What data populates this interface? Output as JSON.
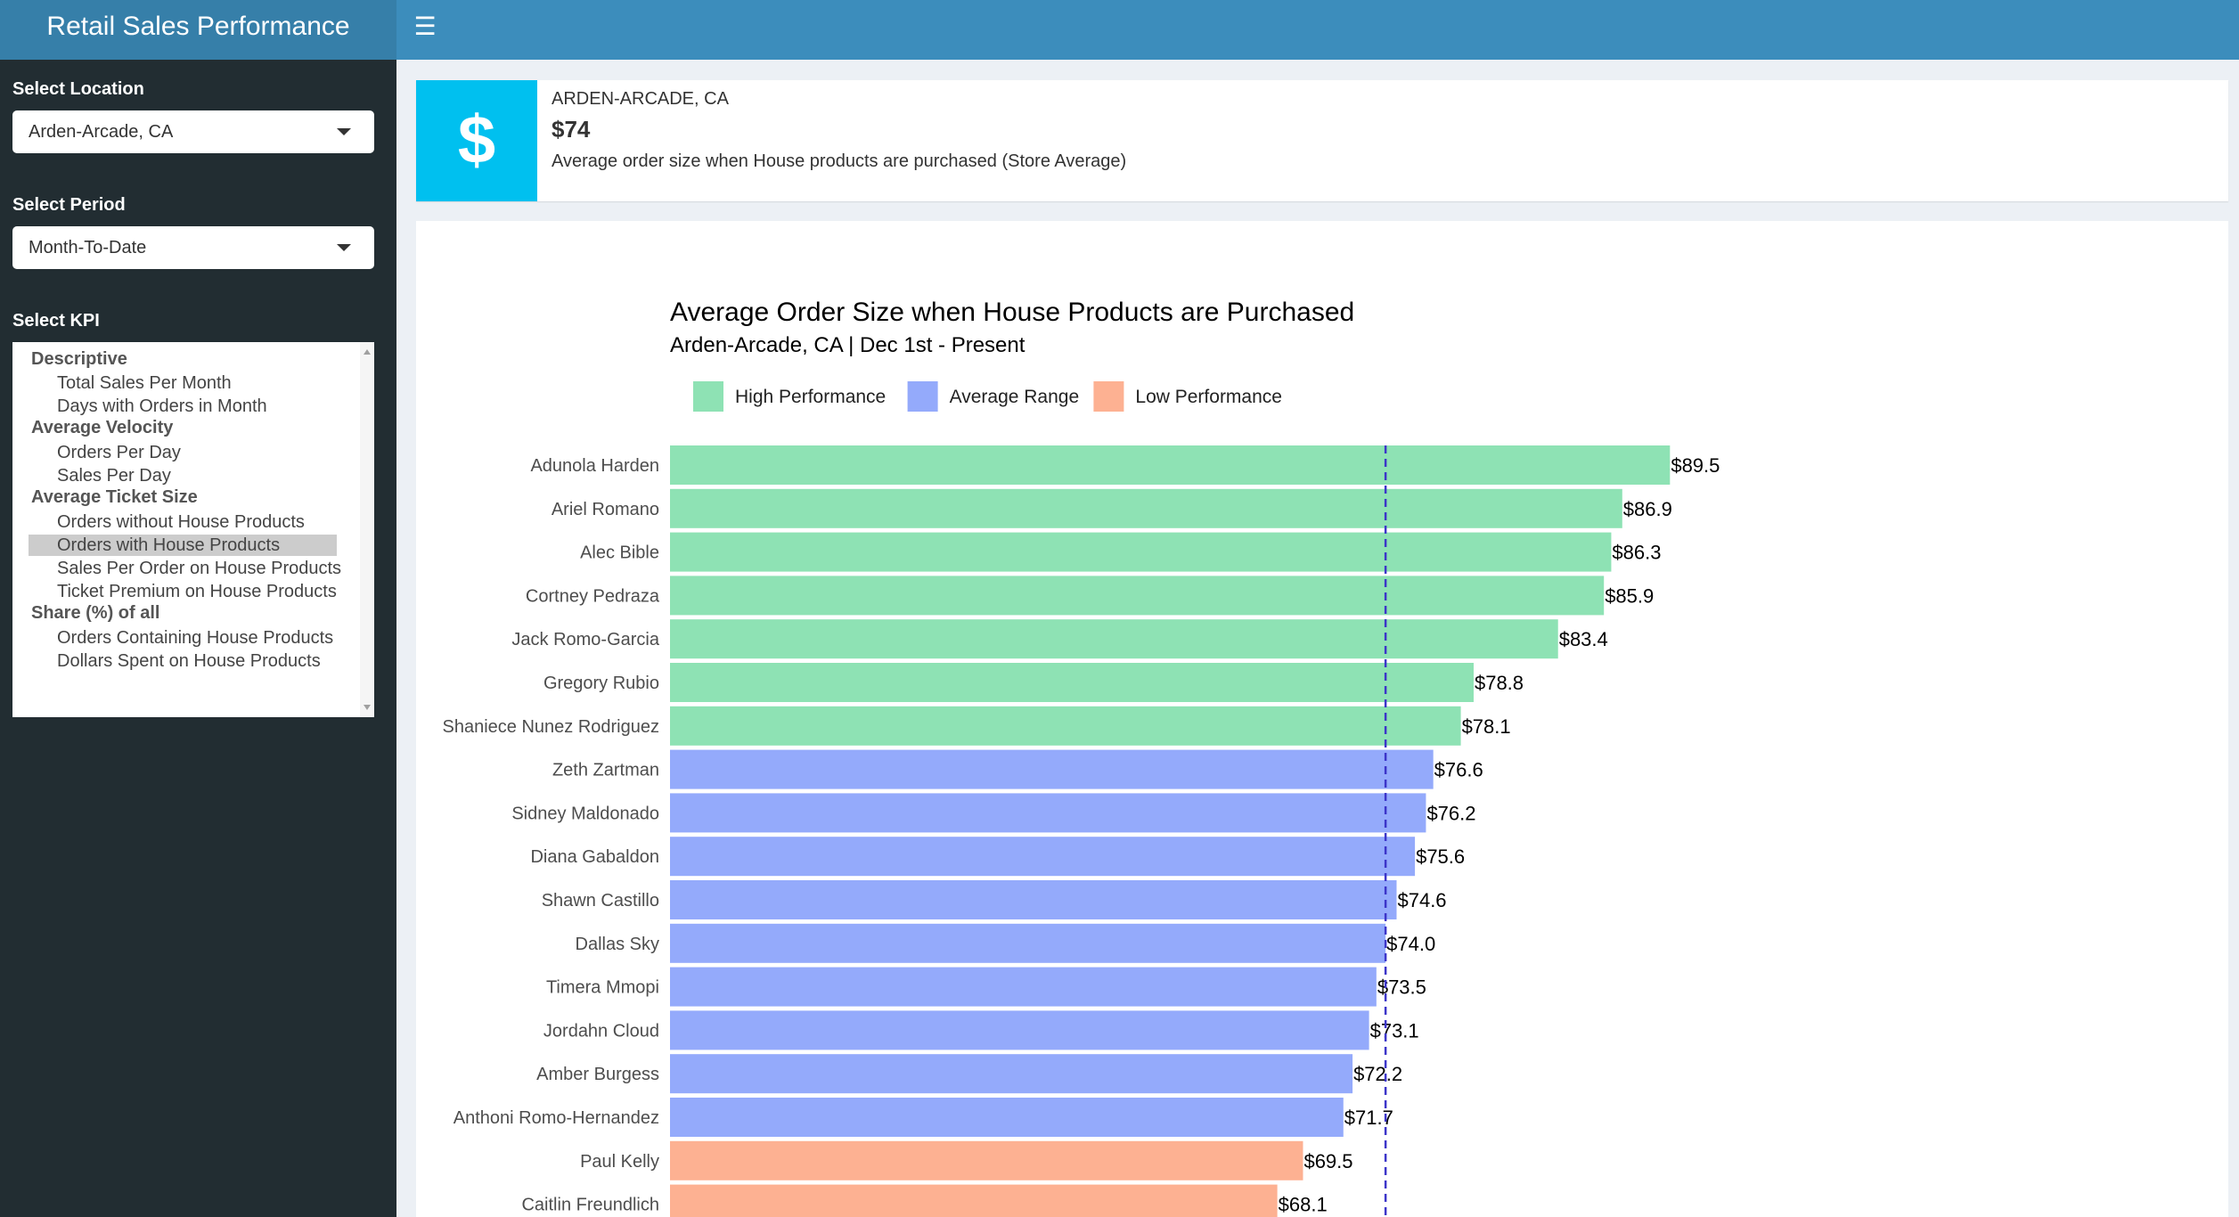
{
  "header": {
    "title": "Retail Sales Performance",
    "menu_icon": "hamburger-icon"
  },
  "sidebar": {
    "location_label": "Select Location",
    "location_value": "Arden-Arcade, CA",
    "period_label": "Select Period",
    "period_value": "Month-To-Date",
    "kpi_label": "Select KPI",
    "kpi_groups": [
      {
        "label": "Descriptive",
        "options": [
          "Total Sales Per Month",
          "Days with Orders in Month"
        ]
      },
      {
        "label": "Average Velocity",
        "options": [
          "Orders Per Day",
          "Sales Per Day"
        ]
      },
      {
        "label": "Average Ticket Size",
        "options": [
          "Orders without House Products",
          "Orders with House Products",
          "Sales Per Order on House Products",
          "Ticket Premium on House Products"
        ]
      },
      {
        "label": "Share (%) of all",
        "options": [
          "Orders Containing House Products",
          "Dollars Spent on House Products"
        ]
      }
    ],
    "selected_kpi": "Orders with House Products"
  },
  "infobox": {
    "icon": "dollar-icon",
    "icon_glyph": "$",
    "location": "ARDEN-ARCADE, CA",
    "value": "$74",
    "description": "Average order size when House products are purchased (Store Average)",
    "color": "#00c0ef"
  },
  "chart_data": {
    "type": "bar",
    "orientation": "horizontal",
    "title": "Average Order Size when House Products are Purchased",
    "subtitle": "Arden-Arcade, CA | Dec 1st - Present",
    "legend": [
      {
        "name": "High Performance",
        "color": "#8ee2b4"
      },
      {
        "name": "Average Range",
        "color": "#94aafb"
      },
      {
        "name": "Low Performance",
        "color": "#fdb192"
      }
    ],
    "legend_position": "top-left",
    "reference_line": {
      "value": 74,
      "style": "dashed",
      "color": "#3c35c9"
    },
    "bar_start": 35,
    "xlim": [
      35,
      94
    ],
    "grid": false,
    "value_prefix": "$",
    "categories": [
      "Adunola Harden",
      "Ariel Romano",
      "Alec Bible",
      "Cortney Pedraza",
      "Jack Romo-Garcia",
      "Gregory Rubio",
      "Shaniece Nunez Rodriguez",
      "Zeth Zartman",
      "Sidney Maldonado",
      "Diana Gabaldon",
      "Shawn Castillo",
      "Dallas Sky",
      "Timera Mmopi",
      "Jordahn Cloud",
      "Amber Burgess",
      "Anthoni Romo-Hernandez",
      "Paul Kelly",
      "Caitlin Freundlich"
    ],
    "values": [
      89.5,
      86.9,
      86.3,
      85.9,
      83.4,
      78.8,
      78.1,
      76.6,
      76.2,
      75.6,
      74.6,
      74.0,
      73.5,
      73.1,
      72.2,
      71.7,
      69.5,
      68.1
    ],
    "value_labels": [
      "$89.5",
      "$86.9",
      "$86.3",
      "$85.9",
      "$83.4",
      "$78.8",
      "$78.1",
      "$76.6",
      "$76.2",
      "$75.6",
      "$74.6",
      "$74.0",
      "$73.5",
      "$73.1",
      "$72.2",
      "$71.7",
      "$69.5",
      "$68.1"
    ],
    "groups": [
      "High Performance",
      "High Performance",
      "High Performance",
      "High Performance",
      "High Performance",
      "High Performance",
      "High Performance",
      "Average Range",
      "Average Range",
      "Average Range",
      "Average Range",
      "Average Range",
      "Average Range",
      "Average Range",
      "Average Range",
      "Average Range",
      "Low Performance",
      "Low Performance"
    ]
  }
}
